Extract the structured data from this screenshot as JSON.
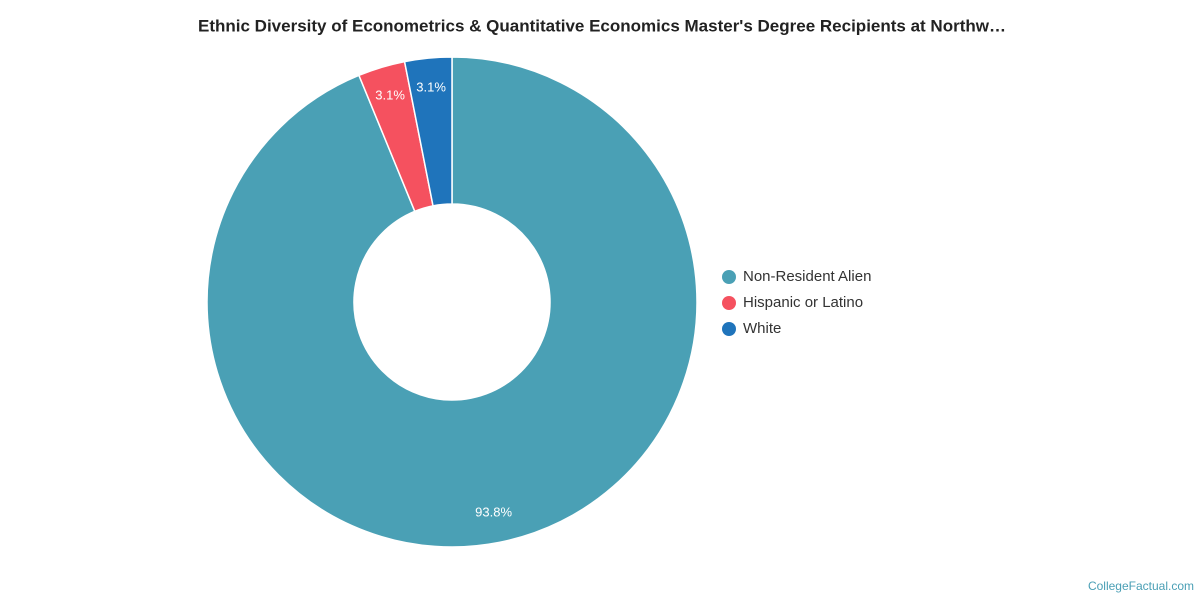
{
  "chart_data": {
    "type": "donut",
    "title": "Ethnic Diversity of Econometrics & Quantitative Economics Master's Degree Recipients at Northw…",
    "categories": [
      "Non-Resident Alien",
      "Hispanic or Latino",
      "White"
    ],
    "values": [
      93.8,
      3.1,
      3.1
    ],
    "value_labels": [
      "93.8%",
      "3.1%",
      "3.1%"
    ],
    "colors": [
      "#4aa0b5",
      "#f5515f",
      "#1f74bb"
    ],
    "legend": "right",
    "credit": "CollegeFactual.com"
  }
}
